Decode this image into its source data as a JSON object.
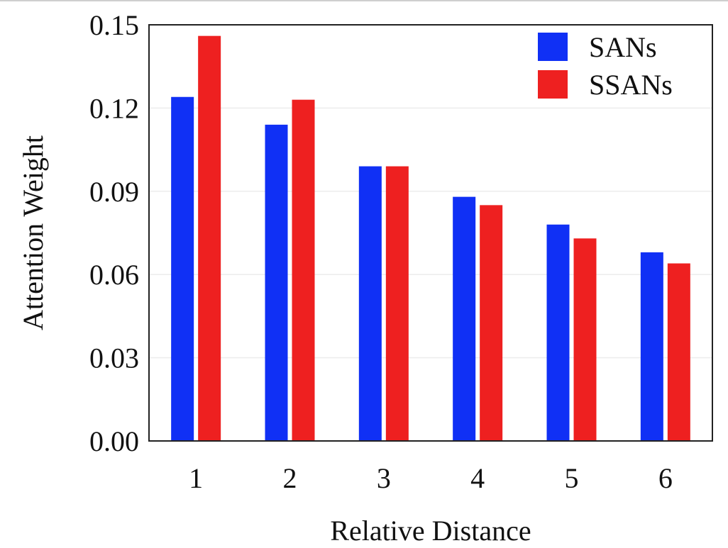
{
  "chart_data": {
    "type": "bar",
    "xlabel": "Relative Distance",
    "ylabel": "Attention Weight",
    "categories": [
      "1",
      "2",
      "3",
      "4",
      "5",
      "6"
    ],
    "ylim": [
      0,
      0.15
    ],
    "yticks": [
      "0.00",
      "0.03",
      "0.06",
      "0.09",
      "0.12",
      "0.15"
    ],
    "ytick_values": [
      0,
      0.03,
      0.06,
      0.09,
      0.12,
      0.15
    ],
    "grid": true,
    "legend_position": "top-right",
    "series": [
      {
        "name": "SANs",
        "color": "#1030f5",
        "values": [
          0.124,
          0.114,
          0.099,
          0.088,
          0.078,
          0.068
        ]
      },
      {
        "name": "SSANs",
        "color": "#ee2020",
        "values": [
          0.146,
          0.123,
          0.099,
          0.085,
          0.073,
          0.064
        ]
      }
    ]
  }
}
